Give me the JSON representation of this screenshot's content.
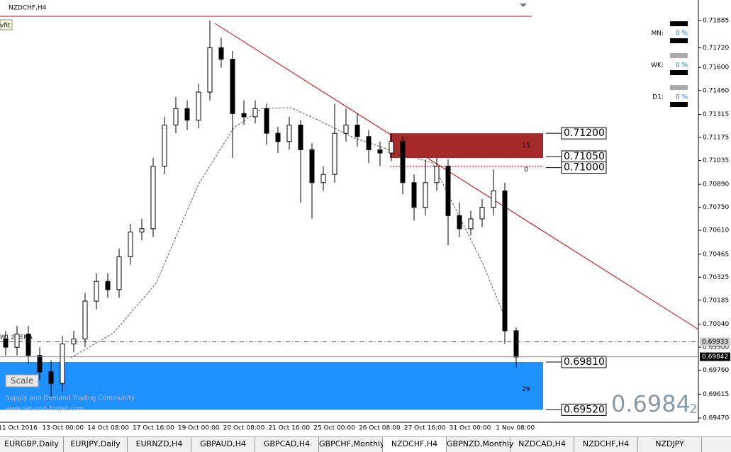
{
  "window": {
    "title": "NZDCHF,H4",
    "fit_label": "vfit",
    "indicator_label": "W1 20 EMA",
    "scale_button": "Scale",
    "watermark": [
      "Supply and Demand Trading Community",
      "www.set-and-forget.com"
    ],
    "big_price": "0.6984",
    "big_price_suffix": "2"
  },
  "chart_data": {
    "type": "candlestick",
    "ylim": [
      0.69457,
      0.7201
    ],
    "yticks": [
      0.71885,
      {
        "value": 0.7172,
        "label": "0.71720"
      },
      {
        "value": 0.716,
        "label": "0.71600"
      },
      {
        "value": 0.7146,
        "label": "0.71460"
      },
      0.71315,
      0.71175,
      0.71035,
      {
        "value": 0.7089,
        "label": "0.70890"
      },
      {
        "value": 0.7075,
        "label": "0.70750"
      },
      {
        "value": 0.7061,
        "label": "0.70610"
      },
      0.70465,
      0.70325,
      0.70185,
      {
        "value": 0.7004,
        "label": "0.70040"
      },
      {
        "value": 0.699,
        "label": "0.69900"
      },
      {
        "value": 0.6976,
        "label": "0.69760"
      },
      0.69615,
      {
        "value": 0.6947,
        "label": "0.69470"
      }
    ],
    "markers": [
      0.69933,
      0.69842
    ],
    "x_labels": [
      "11 Oct 2016",
      "13 Oct 00:00",
      "14 Oct 08:00",
      "17 Oct 16:00",
      "19 Oct 00:00",
      "20 Oct 08:00",
      "21 Oct 16:00",
      "25 Oct 00:00",
      "26 Oct 08:00",
      "27 Oct 16:00",
      "31 Oct 00:00",
      "1 Nov 08:00"
    ],
    "candles": [
      [
        0.6995,
        0.7,
        0.6985,
        0.699
      ],
      [
        0.699,
        0.7003,
        0.6985,
        0.6998
      ],
      [
        0.6998,
        0.7003,
        0.698,
        0.6985
      ],
      [
        0.6985,
        0.699,
        0.697,
        0.6975
      ],
      [
        0.6975,
        0.6982,
        0.696,
        0.6968
      ],
      [
        0.6968,
        0.6997,
        0.6963,
        0.6992
      ],
      [
        0.6992,
        0.7,
        0.6987,
        0.6995
      ],
      [
        0.6995,
        0.7023,
        0.699,
        0.7018
      ],
      [
        0.7018,
        0.7035,
        0.7013,
        0.703
      ],
      [
        0.703,
        0.7035,
        0.702,
        0.7025
      ],
      [
        0.7025,
        0.705,
        0.702,
        0.7045
      ],
      [
        0.7045,
        0.7065,
        0.704,
        0.706
      ],
      [
        0.706,
        0.7068,
        0.7055,
        0.7062
      ],
      [
        0.7062,
        0.7105,
        0.7057,
        0.71
      ],
      [
        0.71,
        0.713,
        0.7095,
        0.7125
      ],
      [
        0.7125,
        0.7142,
        0.712,
        0.7135
      ],
      [
        0.7135,
        0.714,
        0.7122,
        0.7128
      ],
      [
        0.7128,
        0.715,
        0.7123,
        0.7145
      ],
      [
        0.7145,
        0.71885,
        0.714,
        0.7172
      ],
      [
        0.7172,
        0.7178,
        0.716,
        0.7165
      ],
      [
        0.7165,
        0.717,
        0.7105,
        0.7132
      ],
      [
        0.7132,
        0.714,
        0.7125,
        0.713
      ],
      [
        0.713,
        0.714,
        0.7126,
        0.7135
      ],
      [
        0.7135,
        0.7138,
        0.7113,
        0.712
      ],
      [
        0.712,
        0.7124,
        0.7108,
        0.7115
      ],
      [
        0.7115,
        0.713,
        0.711,
        0.7125
      ],
      [
        0.7125,
        0.7128,
        0.7078,
        0.711
      ],
      [
        0.711,
        0.7114,
        0.7068,
        0.709
      ],
      [
        0.709,
        0.71,
        0.7085,
        0.7095
      ],
      [
        0.7095,
        0.7138,
        0.709,
        0.712
      ],
      [
        0.712,
        0.7135,
        0.7115,
        0.7125
      ],
      [
        0.7125,
        0.7132,
        0.7112,
        0.7118
      ],
      [
        0.7118,
        0.7122,
        0.7102,
        0.711
      ],
      [
        0.711,
        0.7115,
        0.71,
        0.7108
      ],
      [
        0.7108,
        0.712,
        0.7103,
        0.7115
      ],
      [
        0.7115,
        0.7118,
        0.7083,
        0.709
      ],
      [
        0.709,
        0.7095,
        0.7067,
        0.7075
      ],
      [
        0.7075,
        0.7104,
        0.707,
        0.709
      ],
      [
        0.709,
        0.7105,
        0.7085,
        0.71
      ],
      [
        0.71,
        0.7104,
        0.7052,
        0.707
      ],
      [
        0.707,
        0.7078,
        0.7057,
        0.7062
      ],
      [
        0.7062,
        0.7073,
        0.7058,
        0.7068
      ],
      [
        0.7068,
        0.708,
        0.7063,
        0.7075
      ],
      [
        0.7075,
        0.7098,
        0.707,
        0.7085
      ],
      [
        0.7085,
        0.709,
        0.6992,
        0.7
      ],
      [
        0.7,
        0.7002,
        0.6978,
        0.6984
      ]
    ],
    "levels": [
      {
        "value": 0.712,
        "label": "0.71200"
      },
      {
        "value": 0.7105,
        "label": "0.71050"
      },
      {
        "value": 0.71,
        "label": "0.71000"
      },
      {
        "value": 0.6981,
        "label": "0.69810"
      },
      {
        "value": 0.6952,
        "label": "0.69520"
      }
    ],
    "zones": [
      {
        "color": "#a52a2a",
        "count": "15",
        "extra": "0"
      },
      {
        "color": "#1e90ff",
        "count": "29"
      }
    ]
  },
  "side_panel": [
    {
      "label": "MN:",
      "value": "0 %"
    },
    {
      "label": "WK:",
      "value": "0 %"
    },
    {
      "label": "D1:",
      "value": "0 %"
    }
  ],
  "tabs": [
    "EURGBP,Daily",
    "EURJPY,Daily",
    "EURNZD,H4",
    "GBPAUD,H4",
    "GBPCAD,H4",
    "GBPCHF,Monthly",
    "NZDCHF,H4",
    "GBPNZD,Monthly",
    "NZDCAD,H4",
    "NZDCHF,H4",
    "NZDJPY"
  ]
}
